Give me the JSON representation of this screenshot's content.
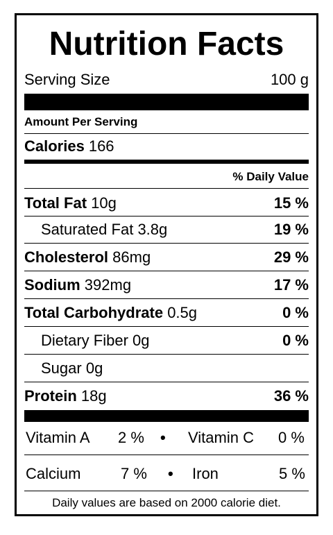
{
  "title": "Nutrition Facts",
  "serving": {
    "label": "Serving Size",
    "value": "100 g"
  },
  "amount_per_serving": "Amount Per Serving",
  "calories": {
    "label": "Calories",
    "value": "166"
  },
  "daily_value_header": "% Daily Value",
  "nutrients": [
    {
      "label": "Total Fat",
      "amount": "10g",
      "dv": "15 %"
    },
    {
      "label": "Saturated Fat",
      "amount": "3.8g",
      "dv": "19 %"
    },
    {
      "label": "Cholesterol",
      "amount": "86mg",
      "dv": "29 %"
    },
    {
      "label": "Sodium",
      "amount": "392mg",
      "dv": "17 %"
    },
    {
      "label": "Total Carbohydrate",
      "amount": "0.5g",
      "dv": "0 %"
    },
    {
      "label": "Dietary Fiber",
      "amount": "0g",
      "dv": "0 %"
    },
    {
      "label": "Sugar",
      "amount": "0g",
      "dv": ""
    },
    {
      "label": "Protein",
      "amount": "18g",
      "dv": "36 %"
    }
  ],
  "vitamins": {
    "vitamin_a": {
      "label": "Vitamin A",
      "value": "2 %"
    },
    "vitamin_c": {
      "label": "Vitamin C",
      "value": "0 %"
    },
    "calcium": {
      "label": "Calcium",
      "value": "7 %"
    },
    "iron": {
      "label": "Iron",
      "value": "5 %"
    },
    "bullet": "•"
  },
  "footnote": "Daily values are based on 2000 calorie diet."
}
